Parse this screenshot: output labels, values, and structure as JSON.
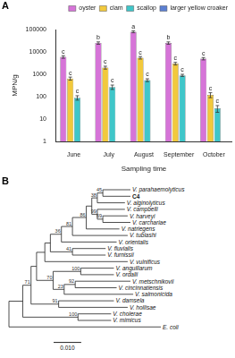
{
  "panel_labels": [
    "A",
    "B"
  ],
  "chart_data": {
    "type": "bar",
    "x_label": "Sampling time",
    "y_label": "MPN/g",
    "categories": [
      "June",
      "July",
      "August",
      "September",
      "October"
    ],
    "series": [
      {
        "name": "oyster",
        "color": "#d674d8",
        "values": [
          6000,
          25000,
          80000,
          25000,
          5000
        ],
        "errors": [
          800,
          3000,
          8000,
          3000,
          600
        ],
        "letters": [
          "c",
          "b",
          "a",
          "b",
          "c"
        ]
      },
      {
        "name": "clam",
        "color": "#f2c93c",
        "values": [
          650,
          2000,
          5500,
          3000,
          120
        ],
        "errors": [
          100,
          300,
          700,
          400,
          30
        ],
        "letters": [
          "c",
          "c",
          "c",
          "c",
          "c"
        ]
      },
      {
        "name": "scallop",
        "color": "#3fc6c9",
        "values": [
          90,
          270,
          550,
          900,
          30
        ],
        "errors": [
          20,
          60,
          80,
          100,
          10
        ],
        "letters": [
          "c",
          "c",
          "c",
          "c",
          "c"
        ]
      },
      {
        "name": "larger yellow croaker",
        "color": "#5b7fd1",
        "values": [
          null,
          null,
          null,
          null,
          null
        ],
        "errors": [
          null,
          null,
          null,
          null,
          null
        ]
      }
    ],
    "log": "y",
    "ylim": [
      1,
      100000
    ],
    "yticks": [
      1,
      10,
      100,
      1000,
      10000,
      100000
    ],
    "grid": false,
    "legend": "top"
  },
  "tree": {
    "scale_bar": {
      "value": 0.01,
      "label": "0.010"
    },
    "root": {
      "length": 0,
      "children": [
        {
          "length": 0.005,
          "children": [
            {
              "length": 0.003,
              "support": 71,
              "children": [
                {
                  "length": 0.002,
                  "children": [
                    {
                      "length": 0.003,
                      "children": [
                        {
                          "length": 0.002,
                          "children": [
                            {
                              "length": 0.004,
                              "support": 36,
                              "children": [
                                {
                                  "length": 0.004,
                                  "support": 81,
                                  "children": [
                                    {
                                      "length": 0.005,
                                      "support": 86,
                                      "children": [
                                        {
                                          "length": 0.002,
                                          "children": [
                                            {
                                              "length": 0.002,
                                              "support": 38,
                                              "children": [
                                                {
                                                  "length": 0.002,
                                                  "support": 45,
                                                  "children": [
                                                    {
                                                      "name": "V. parahaemolyticus",
                                                      "length": 0.01
                                                    },
                                                    {
                                                      "name": "C4",
                                                      "length": 0.01
                                                    }
                                                  ]
                                                },
                                                {
                                                  "name": "V. alginolyticus",
                                                  "length": 0.01
                                                }
                                              ]
                                            },
                                            {
                                              "length": 0.002,
                                              "support": 99,
                                              "children": [
                                                {
                                                  "name": "V. campbelli",
                                                  "length": 0.01
                                                },
                                                {
                                                  "length": 0.002,
                                                  "support": 69,
                                                  "children": [
                                                    {
                                                      "name": "V. harveyi",
                                                      "length": 0.009
                                                    },
                                                    {
                                                      "name": "V. carchariae",
                                                      "length": 0.01
                                                    }
                                                  ]
                                                }
                                              ]
                                            }
                                          ]
                                        },
                                        {
                                          "name": "V. natriegens",
                                          "length": 0.012
                                        }
                                      ]
                                    },
                                    {
                                      "name": "V. tubiashi",
                                      "length": 0.02
                                    }
                                  ]
                                },
                                {
                                  "name": "V. orientalis",
                                  "length": 0.02
                                }
                              ]
                            },
                            {
                              "length": 0.008,
                              "support": 41,
                              "children": [
                                {
                                  "name": "V. fluvialis",
                                  "length": 0.012
                                },
                                {
                                  "name": "V. furnissii",
                                  "length": 0.012
                                }
                              ]
                            }
                          ]
                        },
                        {
                          "name": "V. vulnificus",
                          "length": 0.03
                        }
                      ]
                    },
                    {
                      "length": 0.006,
                      "support": 70,
                      "children": [
                        {
                          "length": 0.01,
                          "support": 100,
                          "children": [
                            {
                              "name": "V. anguillarum",
                              "length": 0.012
                            },
                            {
                              "name": "V. ordalii",
                              "length": 0.012
                            }
                          ]
                        },
                        {
                          "length": 0.004,
                          "support": 23,
                          "children": [
                            {
                              "length": 0.004,
                              "support": 92,
                              "children": [
                                {
                                  "name": "V. metschnikovii",
                                  "length": 0.02
                                },
                                {
                                  "name": "V. cincinnatiensis",
                                  "length": 0.015
                                }
                              ]
                            },
                            {
                              "name": "V. salmonicida",
                              "length": 0.025
                            }
                          ]
                        }
                      ]
                    }
                  ]
                },
                {
                  "length": 0.01,
                  "support": 91,
                  "children": [
                    {
                      "name": "V. damsela",
                      "length": 0.02
                    },
                    {
                      "name": "V. hollisae",
                      "length": 0.025
                    }
                  ]
                }
              ]
            },
            {
              "length": 0.02,
              "support": 100,
              "children": [
                {
                  "name": "V. cholerae",
                  "length": 0.012
                },
                {
                  "name": "V. mimicus",
                  "length": 0.012
                }
              ]
            }
          ]
        },
        {
          "name": "E. coli",
          "length": 0.055
        }
      ]
    }
  }
}
